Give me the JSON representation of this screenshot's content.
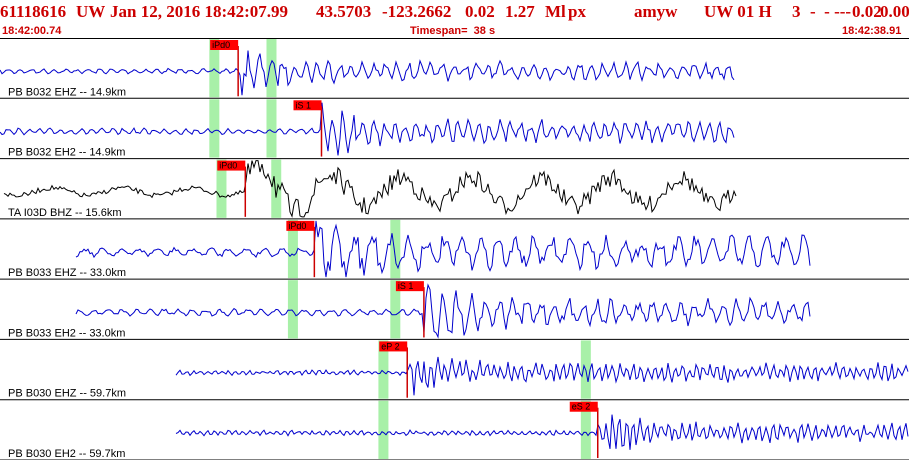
{
  "header": {
    "event_id": "61118616",
    "network": "UW",
    "datetime": "Jan 12, 2016 18:42:07.99",
    "latitude": "43.5703",
    "longitude": "-123.2662",
    "depth": "0.02",
    "magnitude": "1.27",
    "mag_type": "Ml",
    "event_type": "px",
    "analyst": "amyw",
    "source": "UW 01 H",
    "quality": "3",
    "flags": "-  - ---",
    "rms": "0.02",
    "err": "0.00"
  },
  "timebar": {
    "start_time": "18:42:00.74",
    "timespan": "Timespan=  38 s",
    "end_time": "18:42:38.91"
  },
  "colors": {
    "header_text": "#cc0000",
    "trace_blue": "#0000cc",
    "trace_black": "#000000",
    "pick_marker": "#ff0000",
    "window_green": "#a8f0a8",
    "divider": "#000000"
  },
  "channels": [
    {
      "label": "PB B032 EHZ -- 14.9km",
      "color": "trace_blue",
      "picks": [
        {
          "label": "iPd0",
          "time_s": 10.0
        }
      ],
      "green_windows_s": [
        9.0,
        11.4
      ]
    },
    {
      "label": "PB B032 EH2 -- 14.9km",
      "color": "trace_blue",
      "picks": [
        {
          "label": "iS 1",
          "time_s": 13.5
        }
      ],
      "green_windows_s": [
        9.0,
        11.4
      ]
    },
    {
      "label": "TA I03D BHZ -- 15.6km",
      "color": "trace_black",
      "picks": [
        {
          "label": "iPd0",
          "time_s": 10.3
        }
      ],
      "green_windows_s": [
        9.3,
        11.6
      ]
    },
    {
      "label": "PB B033 EHZ -- 33.0km",
      "color": "trace_blue",
      "picks": [
        {
          "label": "iPd0",
          "time_s": 13.2
        }
      ],
      "green_windows_s": [
        12.3,
        16.6
      ]
    },
    {
      "label": "PB B033 EH2 -- 33.0km",
      "color": "trace_blue",
      "picks": [
        {
          "label": "iS 1",
          "time_s": 17.8
        }
      ],
      "green_windows_s": [
        12.3,
        16.6
      ]
    },
    {
      "label": "PB B030 EHZ -- 59.7km",
      "color": "trace_blue",
      "picks": [
        {
          "label": "eP 2",
          "time_s": 17.1
        }
      ],
      "green_windows_s": [
        16.1,
        24.6
      ]
    },
    {
      "label": "PB B030 EH2 -- 59.7km",
      "color": "trace_blue",
      "picks": [
        {
          "label": "eS 2",
          "time_s": 25.1
        }
      ],
      "green_windows_s": [
        16.1,
        24.6
      ]
    }
  ]
}
